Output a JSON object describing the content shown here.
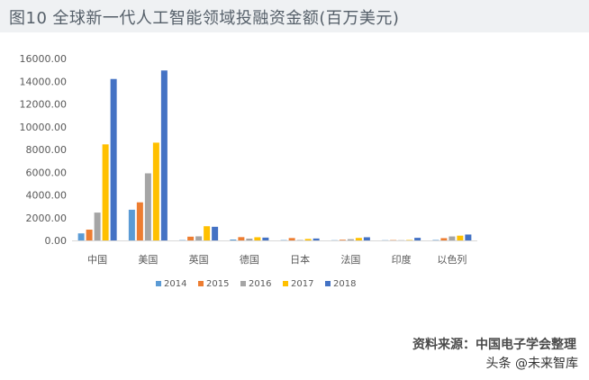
{
  "figure": {
    "number": "图10",
    "title": "全球新一代人工智能领域投融资金额(百万美元)"
  },
  "chart_data": {
    "type": "bar",
    "categories": [
      "中国",
      "美国",
      "英国",
      "德国",
      "日本",
      "法国",
      "印度",
      "以色列"
    ],
    "series": [
      {
        "name": "2014",
        "color": "#5b9bd5",
        "values": [
          620,
          2700,
          30,
          80,
          30,
          20,
          20,
          40
        ]
      },
      {
        "name": "2015",
        "color": "#ed7d31",
        "values": [
          950,
          3350,
          330,
          290,
          210,
          60,
          30,
          200
        ]
      },
      {
        "name": "2016",
        "color": "#a5a5a5",
        "values": [
          2450,
          5900,
          360,
          160,
          40,
          110,
          20,
          350
        ]
      },
      {
        "name": "2017",
        "color": "#ffc000",
        "values": [
          8450,
          8600,
          1250,
          280,
          130,
          220,
          40,
          420
        ]
      },
      {
        "name": "2018",
        "color": "#4472c4",
        "values": [
          14200,
          14950,
          1200,
          250,
          170,
          280,
          230,
          520
        ]
      }
    ],
    "yticks": [
      "0.00",
      "2000.00",
      "4000.00",
      "6000.00",
      "8000.00",
      "10000.00",
      "12000.00",
      "14000.00",
      "16000.00"
    ],
    "ylim": [
      0,
      16000
    ],
    "grid": false,
    "legend_position": "bottom"
  },
  "footer": {
    "source": "资料来源：中国电子学会整理",
    "watermark": "头条 @未来智库"
  }
}
